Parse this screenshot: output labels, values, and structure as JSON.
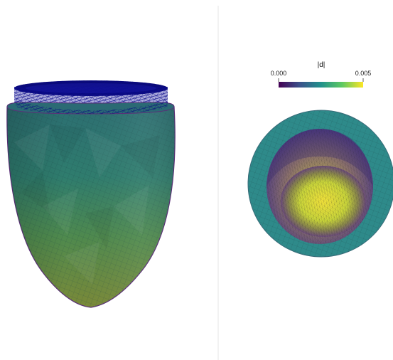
{
  "colorbar": {
    "title": "|d|",
    "min_label": "0.000",
    "max_label": "0.005",
    "colormap": "viridis",
    "stops": [
      "#440154",
      "#3b528b",
      "#21918c",
      "#5ec962",
      "#fde725"
    ]
  },
  "left_view": {
    "description_color": "#2f7d74",
    "wire_color": "#0a0a8a"
  },
  "right_view": {
    "outer_color": "#2e8a8a",
    "cavity_color": "#5b3f87",
    "core_color": "#e9de3c"
  }
}
